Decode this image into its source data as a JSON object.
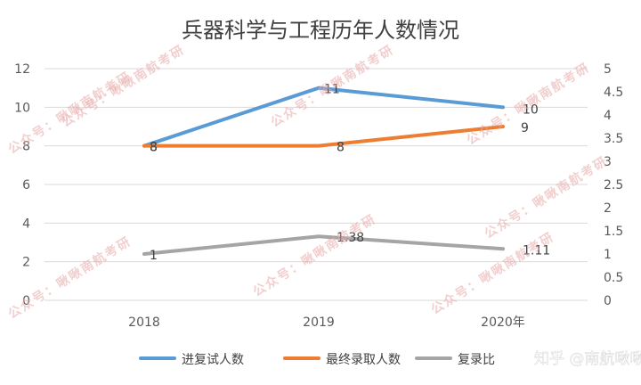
{
  "chart_data": {
    "type": "line",
    "title": "兵器科学与工程历年人数情况",
    "categories": [
      "2018",
      "2019",
      "2020年"
    ],
    "left_axis": {
      "min": 0,
      "max": 12,
      "ticks": [
        "0",
        "2",
        "4",
        "6",
        "8",
        "10",
        "12"
      ]
    },
    "right_axis": {
      "min": 0,
      "max": 5,
      "ticks": [
        "0",
        "0.5",
        "1",
        "1.5",
        "2",
        "2.5",
        "3",
        "3.5",
        "4",
        "4.5",
        "5"
      ]
    },
    "grid": true,
    "legend_position": "bottom",
    "series": [
      {
        "name": "进复试人数",
        "axis": "left",
        "color": "#5b9bd5",
        "values": [
          8,
          11,
          10
        ],
        "labels": [
          "8",
          "11",
          "10"
        ]
      },
      {
        "name": "最终录取人数",
        "axis": "left",
        "color": "#ed7d31",
        "values": [
          8,
          8,
          9
        ],
        "labels": [
          "8",
          "8",
          "9"
        ]
      },
      {
        "name": "复录比",
        "axis": "right",
        "color": "#a5a5a5",
        "values": [
          1,
          1.38,
          1.11
        ],
        "labels": [
          "1",
          "1.38",
          "1.11"
        ]
      }
    ]
  },
  "watermark": {
    "text": "公众号：啾啾南航考研",
    "zhihu": "知乎 @南航啾啾"
  }
}
